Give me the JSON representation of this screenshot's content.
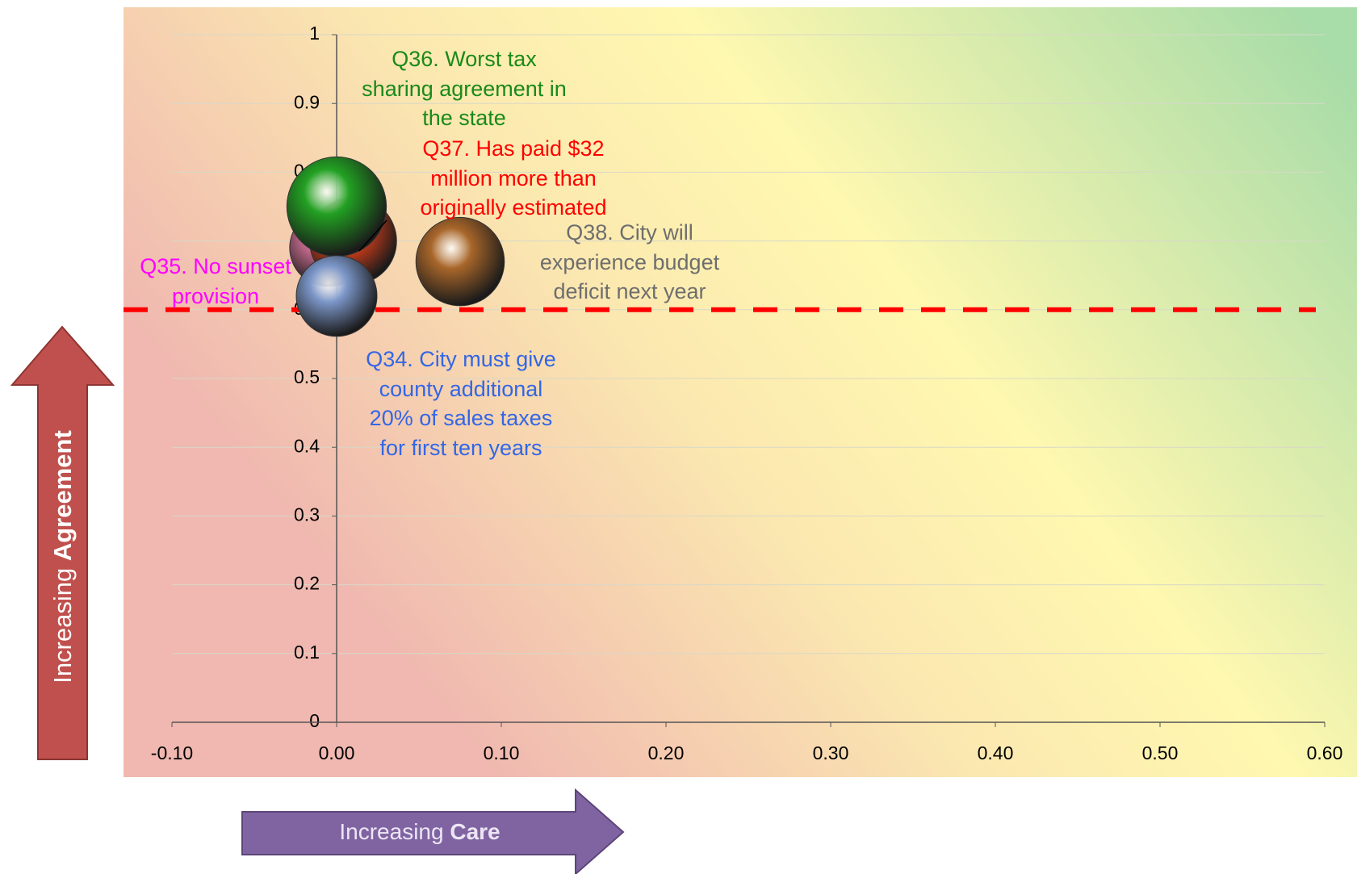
{
  "chart_data": {
    "type": "bubble",
    "xlim": [
      -0.1,
      0.6
    ],
    "xticks": [
      {
        "value": -0.1,
        "label": "-0.10"
      },
      {
        "value": 0,
        "label": "0.00"
      },
      {
        "value": 0.1,
        "label": "0.10"
      },
      {
        "value": 0.2,
        "label": "0.20"
      },
      {
        "value": 0.3,
        "label": "0.30"
      },
      {
        "value": 0.4,
        "label": "0.40"
      },
      {
        "value": 0.5,
        "label": "0.50"
      },
      {
        "value": 0.6,
        "label": "0.60"
      }
    ],
    "ylim": [
      0,
      1
    ],
    "yticks": [
      0,
      0.1,
      0.2,
      0.3,
      0.4,
      0.5,
      0.6,
      0.7,
      0.8,
      0.9,
      1
    ],
    "grid": true,
    "reference_line": {
      "value": 0.6,
      "color": "#ff0000"
    },
    "x_arrow_label": [
      "Increasing",
      "Care"
    ],
    "y_arrow_label": [
      "Increasing",
      "Agreement"
    ],
    "series": [
      {
        "name": "Q34. City must give\ncounty additional\n20% of sales taxes\nfor first ten years",
        "color": "#7b96c8",
        "label_color": "#3366e6",
        "x": [
          0
        ],
        "values": [
          0.62
        ],
        "sizes": [
          25
        ]
      },
      {
        "name": "Q35. No sunset\nprovision",
        "color": "#c46a8c",
        "label_color": "#ff00ff",
        "x": [
          -0.005
        ],
        "values": [
          0.69
        ],
        "sizes": [
          23
        ]
      },
      {
        "name": "Q36. Worst tax\nsharing agreement in\nthe state",
        "color": "#22a022",
        "label_color": "#1a8a1a",
        "x": [
          0
        ],
        "values": [
          0.75
        ],
        "sizes": [
          38
        ]
      },
      {
        "name": "Q37. Has paid $32\nmillion more than\noriginally estimated",
        "color": "#e0401a",
        "label_color": "#ff0000",
        "x": [
          0.01
        ],
        "values": [
          0.7
        ],
        "sizes": [
          29
        ]
      },
      {
        "name": "Q38. City will\nexperience budget\ndeficit next year",
        "color": "#a8662a",
        "label_color": "#6e6e6e",
        "x": [
          0.075
        ],
        "values": [
          0.67
        ],
        "sizes": [
          30
        ]
      }
    ]
  }
}
